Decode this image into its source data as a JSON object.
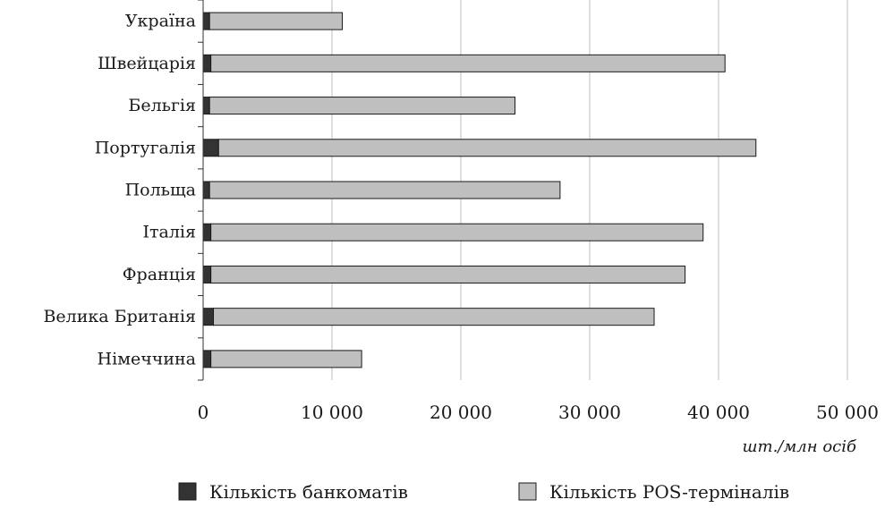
{
  "chart_data": {
    "type": "bar",
    "orientation": "horizontal",
    "stacked": true,
    "categories": [
      "Німеччина",
      "Велика Британія",
      "Франція",
      "Італія",
      "Польща",
      "Португалія",
      "Бельгія",
      "Швейцарія",
      "Україна"
    ],
    "series": [
      {
        "name": "Кількість банкоматів",
        "color": "#333333",
        "values": [
          600,
          800,
          600,
          600,
          500,
          1200,
          500,
          600,
          500
        ]
      },
      {
        "name": "Кількість POS-терміналів",
        "color": "#bfbfbf",
        "values": [
          11700,
          34200,
          36800,
          38200,
          27200,
          41700,
          23700,
          39900,
          10300
        ]
      }
    ],
    "xlim": [
      0,
      50000
    ],
    "xticks": [
      0,
      10000,
      20000,
      30000,
      40000,
      50000
    ],
    "xtick_labels": [
      "0",
      "10 000",
      "20 000",
      "30 000",
      "40 000",
      "50 000"
    ],
    "xlabel": "шт./млн осіб",
    "ylabel": "",
    "grid": "vertical",
    "legend_position": "bottom"
  }
}
